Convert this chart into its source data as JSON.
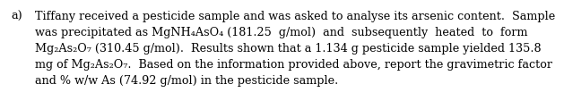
{
  "label_a": "a)",
  "line1": "Tiffany received a pesticide sample and was asked to analyse its arsenic content.  Sample",
  "line2": "was precipitated as MgNH₄AsO₄ (181.25  g/mol)  and  subsequently  heated  to  form",
  "line3": "Mg₂As₂O₇ (310.45 g/mol).  Results shown that a 1.134 g pesticide sample yielded 135.8",
  "line4": "mg of Mg₂As₂O₇.  Based on the information provided above, report the gravimetric factor",
  "line5": "and % w/w As (74.92 g/mol) in the pesticide sample.",
  "bg_color": "#ffffff",
  "text_color": "#000000",
  "font_size": 9.2,
  "font_family": "DejaVu Serif"
}
